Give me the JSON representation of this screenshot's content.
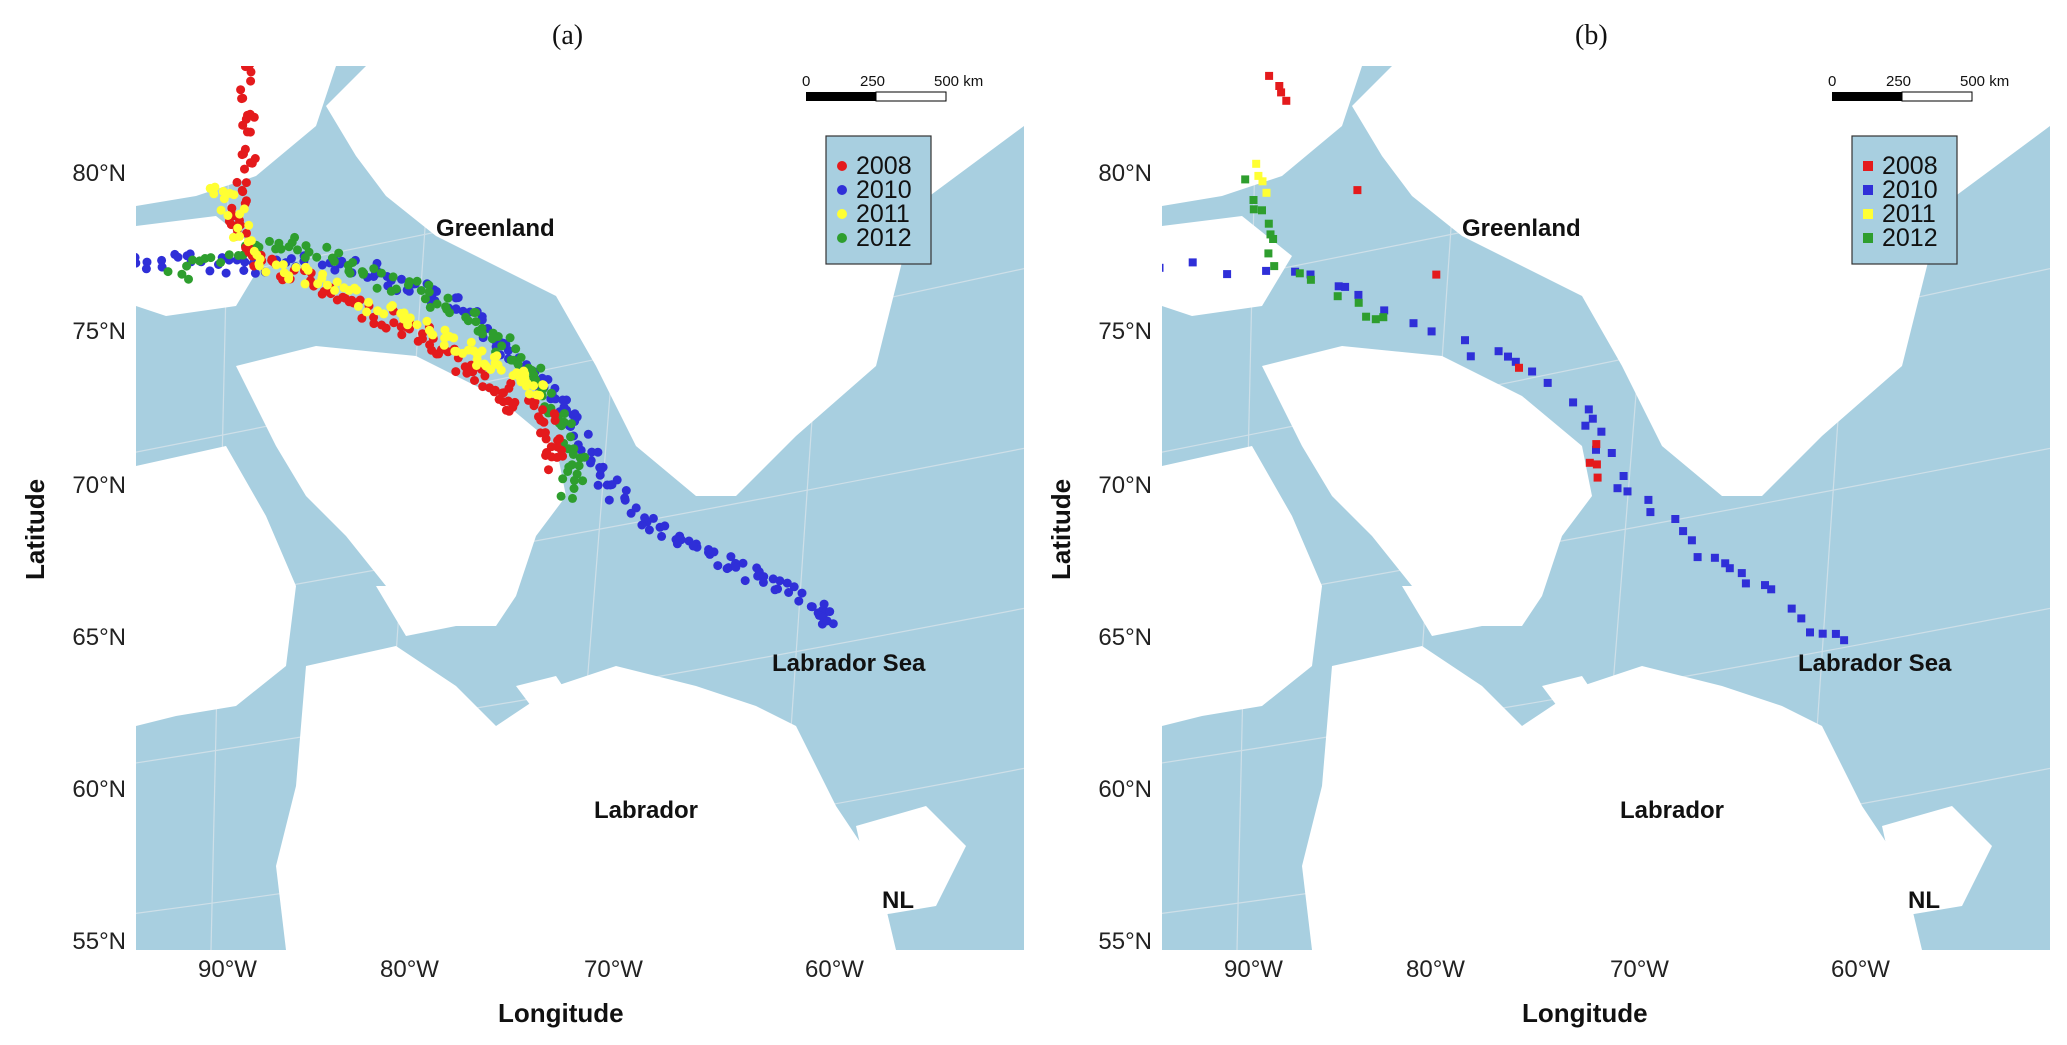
{
  "figure": {
    "panels": [
      {
        "label": "(a)",
        "marker": "circle",
        "legend": [
          {
            "year": "2008",
            "color": "#e41a1c"
          },
          {
            "year": "2010",
            "color": "#2f2fd8"
          },
          {
            "year": "2011",
            "color": "#ffff33"
          },
          {
            "year": "2012",
            "color": "#2e9e2e"
          }
        ]
      },
      {
        "label": "(b)",
        "marker": "square",
        "legend": [
          {
            "year": "2008",
            "color": "#e41a1c"
          },
          {
            "year": "2010",
            "color": "#2f2fd8"
          },
          {
            "year": "2011",
            "color": "#ffff33"
          },
          {
            "year": "2012",
            "color": "#2e9e2e"
          }
        ]
      }
    ],
    "axes": {
      "xlabel": "Longitude",
      "ylabel": "Latitude",
      "xticks": [
        "90°W",
        "80°W",
        "70°W",
        "60°W"
      ],
      "yticks": [
        "80°N",
        "75°N",
        "70°N",
        "65°N",
        "60°N",
        "55°N"
      ]
    },
    "places": {
      "greenland": "Greenland",
      "labrador_sea": "Labrador Sea",
      "labrador": "Labrador",
      "nl": "NL"
    },
    "scale_bar": {
      "labels": [
        "0",
        "250",
        "500 km"
      ]
    },
    "colors": {
      "water": "#a8cfe0",
      "land": "#ffffff",
      "graticule": "#e6e6e6"
    }
  }
}
